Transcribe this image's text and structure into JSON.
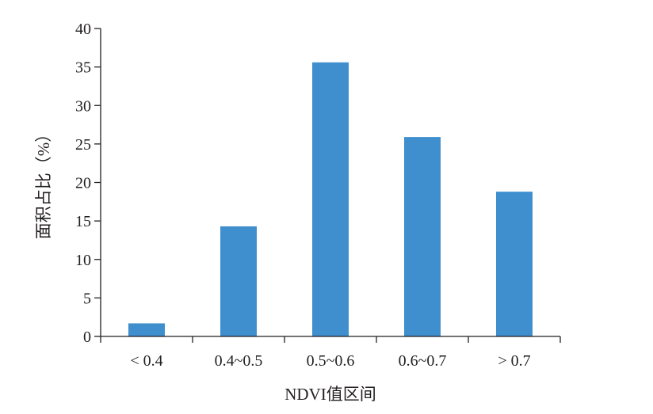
{
  "chart_data": {
    "type": "bar",
    "categories": [
      "< 0.4",
      "0.4~0.5",
      "0.5~0.6",
      "0.6~0.7",
      "> 0.7"
    ],
    "values": [
      1.7,
      14.3,
      35.6,
      25.9,
      18.8
    ],
    "xlabel": "NDVI值区间",
    "ylabel": "面积占比（%）",
    "ylim": [
      0,
      40
    ],
    "yticks": [
      0,
      5,
      10,
      15,
      20,
      25,
      30,
      35,
      40
    ],
    "grid": false,
    "legend": "none",
    "bar_color": "#3f8fce",
    "axis_color": "#231f20"
  }
}
